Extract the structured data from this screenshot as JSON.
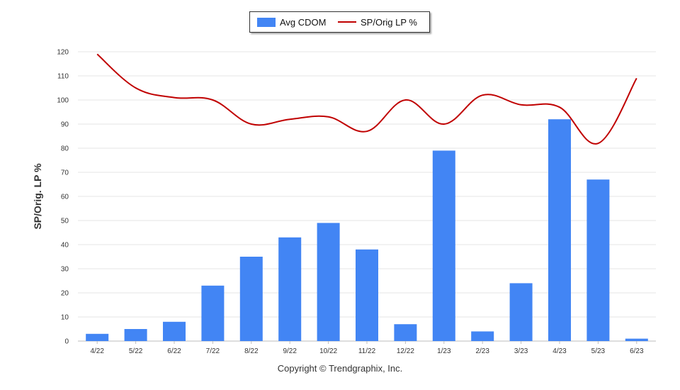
{
  "chart_data": {
    "type": "bar+line",
    "categories": [
      "4/22",
      "5/22",
      "6/22",
      "7/22",
      "8/22",
      "9/22",
      "10/22",
      "11/22",
      "12/22",
      "1/23",
      "2/23",
      "3/23",
      "4/23",
      "5/23",
      "6/23"
    ],
    "series": [
      {
        "name": "Avg CDOM",
        "type": "bar",
        "color": "#4285f4",
        "values": [
          3,
          5,
          8,
          23,
          35,
          43,
          49,
          38,
          7,
          79,
          4,
          24,
          92,
          67,
          1
        ]
      },
      {
        "name": "SP/Orig LP %",
        "type": "line",
        "color": "#c00000",
        "values": [
          119,
          105,
          101,
          100,
          90,
          92,
          93,
          87,
          100,
          90,
          102,
          98,
          97,
          82,
          109
        ]
      }
    ],
    "ylabel": "SP/Orig. LP %",
    "yticks": [
      0,
      10,
      20,
      30,
      40,
      50,
      60,
      70,
      80,
      90,
      100,
      110,
      120
    ],
    "ylim": [
      0,
      120
    ],
    "grid": true,
    "legend": "top-center"
  },
  "copyright": "Copyright © Trendgraphix, Inc."
}
